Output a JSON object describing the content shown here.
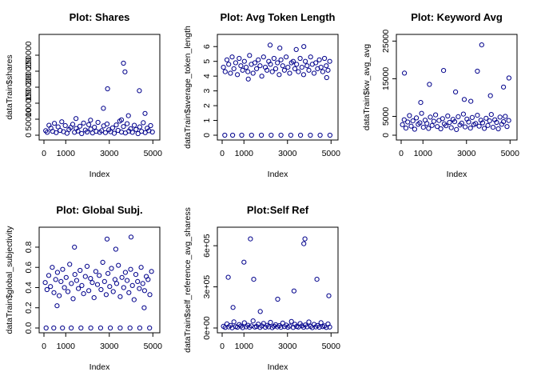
{
  "chart_data": [
    {
      "type": "scatter",
      "title": "Plot: Shares",
      "xlabel": "Index",
      "ylabel": "dataTrain$shares",
      "xlim": [
        0,
        5100
      ],
      "ylim": [
        0,
        300000
      ],
      "x_ticks": [
        0,
        1000,
        3000,
        5000
      ],
      "x_tick_labels": [
        "0",
        "1000",
        "3000",
        "5000"
      ],
      "y_ticks": [
        0,
        50000,
        100000,
        150000,
        200000,
        250000
      ],
      "y_tick_labels": [
        "0",
        "50000",
        "100000",
        "150000",
        "200000",
        "250000"
      ],
      "point_color": "#00008B",
      "series": [
        {
          "x": [
            80,
            150,
            230,
            320,
            400,
            480,
            560,
            650,
            740,
            820,
            900,
            980,
            1060,
            1150,
            1230,
            1320,
            1400,
            1480,
            1560,
            1650,
            1730,
            1820,
            1900,
            1980,
            2060,
            2150,
            2230,
            2320,
            2400,
            2480,
            2560,
            2650,
            2740,
            2820,
            2900,
            2980,
            3060,
            3150,
            3230,
            3320,
            3400,
            3480,
            3560,
            3650,
            3740,
            3820,
            3900,
            3980,
            4060,
            4150,
            4230,
            4320,
            4400,
            4480,
            4560,
            4650,
            4740,
            4820,
            4900,
            4980,
            2730,
            2920,
            3720,
            3650,
            4380,
            3880,
            3560,
            4640,
            2140,
            1470
          ],
          "y": [
            14000,
            9000,
            31000,
            22000,
            12000,
            37000,
            8000,
            26000,
            15000,
            42000,
            11000,
            30000,
            6000,
            18000,
            24000,
            34000,
            9000,
            21000,
            13000,
            28000,
            5000,
            38000,
            16000,
            10000,
            33000,
            19000,
            7000,
            25000,
            12000,
            40000,
            9000,
            14000,
            29000,
            8000,
            35000,
            17000,
            11000,
            23000,
            6000,
            32000,
            15000,
            44000,
            10000,
            27000,
            7000,
            36000,
            13000,
            20000,
            9000,
            31000,
            18000,
            5000,
            26000,
            12000,
            39000,
            8000,
            22000,
            14000,
            30000,
            10000,
            84000,
            145000,
            198000,
            225000,
            139000,
            61000,
            48000,
            68000,
            47000,
            52000
          ]
        }
      ]
    },
    {
      "type": "scatter",
      "title": "Plot: Avg Token Length",
      "xlabel": "Index",
      "ylabel": "dataTrain$average_token_length",
      "xlim": [
        0,
        5100
      ],
      "ylim": [
        0,
        6.5
      ],
      "x_ticks": [
        0,
        1000,
        3000,
        5000
      ],
      "x_tick_labels": [
        "0",
        "1000",
        "3000",
        "5000"
      ],
      "y_ticks": [
        0,
        1,
        2,
        3,
        4,
        5,
        6
      ],
      "y_tick_labels": [
        "0",
        "1",
        "2",
        "3",
        "4",
        "5",
        "6"
      ],
      "point_color": "#00008B",
      "series": [
        {
          "x": [
            60,
            140,
            220,
            300,
            380,
            460,
            540,
            620,
            700,
            780,
            860,
            940,
            1020,
            1100,
            1180,
            1260,
            1340,
            1420,
            1500,
            1580,
            1660,
            1740,
            1820,
            1900,
            1980,
            2060,
            2140,
            2220,
            2300,
            2380,
            2460,
            2540,
            2620,
            2700,
            2780,
            2860,
            2940,
            3020,
            3100,
            3180,
            3260,
            3340,
            3420,
            3500,
            3580,
            3660,
            3740,
            3820,
            3900,
            3980,
            4060,
            4140,
            4220,
            4300,
            4380,
            4460,
            4540,
            4620,
            4700,
            4780,
            4860,
            4940,
            120,
            480,
            900,
            1350,
            1800,
            2250,
            2700,
            3150,
            3600,
            4050,
            4500,
            4950,
            2200,
            2650,
            3400,
            1200,
            4800,
            3750
          ],
          "y": [
            4.6,
            4.3,
            5.1,
            4.8,
            4.2,
            5.3,
            4.5,
            4.9,
            4.1,
            5.2,
            4.7,
            4.4,
            5.0,
            4.6,
            4.3,
            5.4,
            4.8,
            4.2,
            4.9,
            4.5,
            5.1,
            4.7,
            4.0,
            5.3,
            4.6,
            4.4,
            5.0,
            4.8,
            4.3,
            5.2,
            4.5,
            4.9,
            4.1,
            5.1,
            4.7,
            4.4,
            5.3,
            4.6,
            4.2,
            4.9,
            5.0,
            4.5,
            4.8,
            4.3,
            5.2,
            4.6,
            4.1,
            5.0,
            4.7,
            4.4,
            5.3,
            4.8,
            4.2,
            4.9,
            4.5,
            5.1,
            4.6,
            4.3,
            5.2,
            4.7,
            4.4,
            5.0,
            0,
            0,
            0,
            0,
            0,
            0,
            0,
            0,
            0,
            0,
            0,
            0,
            6.1,
            5.9,
            5.8,
            3.8,
            3.9,
            6.0
          ]
        }
      ]
    },
    {
      "type": "scatter",
      "title": "Plot: Keyword Avg",
      "xlabel": "Index",
      "ylabel": "dataTrain$kw_avg_avg",
      "xlim": [
        0,
        5100
      ],
      "ylim": [
        0,
        25500
      ],
      "x_ticks": [
        0,
        1000,
        3000,
        5000
      ],
      "x_tick_labels": [
        "0",
        "1000",
        "3000",
        "5000"
      ],
      "y_ticks": [
        0,
        5000,
        15000,
        25000
      ],
      "y_tick_labels": [
        "0",
        "5000",
        "15000",
        "25000"
      ],
      "point_color": "#00008B",
      "series": [
        {
          "x": [
            60,
            140,
            220,
            300,
            380,
            460,
            540,
            620,
            700,
            780,
            860,
            940,
            1020,
            1100,
            1180,
            1260,
            1340,
            1420,
            1500,
            1580,
            1660,
            1740,
            1820,
            1900,
            1980,
            2060,
            2140,
            2220,
            2300,
            2380,
            2460,
            2540,
            2620,
            2700,
            2780,
            2860,
            2940,
            3020,
            3100,
            3180,
            3260,
            3340,
            3420,
            3500,
            3580,
            3660,
            3740,
            3820,
            3900,
            3980,
            4060,
            4140,
            4220,
            4300,
            4380,
            4460,
            4540,
            4620,
            4700,
            4780,
            4860,
            4940,
            150,
            1950,
            3700,
            4950,
            1300,
            3500,
            4100,
            2900,
            900,
            2500,
            4700,
            3200
          ],
          "y": [
            2800,
            4100,
            1900,
            3500,
            5200,
            2400,
            3800,
            1600,
            4600,
            2900,
            3300,
            5800,
            2100,
            4000,
            3100,
            1800,
            4800,
            2600,
            3700,
            5400,
            2300,
            3900,
            1700,
            4400,
            3000,
            2500,
            5100,
            3400,
            2000,
            4200,
            3600,
            1500,
            4900,
            2700,
            3200,
            5600,
            2200,
            4300,
            3500,
            1900,
            4700,
            2800,
            3100,
            5300,
            2400,
            4000,
            3300,
            1800,
            4500,
            2600,
            3800,
            5500,
            2100,
            4100,
            3400,
            1700,
            4800,
            2900,
            3600,
            5000,
            2300,
            3900,
            16500,
            17200,
            24000,
            15200,
            13500,
            17000,
            10500,
            9500,
            8700,
            11500,
            12800,
            9000
          ]
        }
      ]
    },
    {
      "type": "scatter",
      "title": "Plot: Global Subj.",
      "xlabel": "Index",
      "ylabel": "dataTrain$global_subjectivity",
      "xlim": [
        0,
        5100
      ],
      "ylim": [
        0,
        0.95
      ],
      "x_ticks": [
        0,
        1000,
        3000,
        5000
      ],
      "x_tick_labels": [
        "0",
        "1000",
        "3000",
        "5000"
      ],
      "y_ticks": [
        0,
        0.2,
        0.4,
        0.6,
        0.8
      ],
      "y_tick_labels": [
        "0.0",
        "0.2",
        "0.4",
        "0.6",
        "0.8"
      ],
      "point_color": "#00008B",
      "series": [
        {
          "x": [
            60,
            140,
            220,
            300,
            380,
            460,
            540,
            620,
            700,
            780,
            860,
            940,
            1020,
            1100,
            1180,
            1260,
            1340,
            1420,
            1500,
            1580,
            1660,
            1740,
            1820,
            1900,
            1980,
            2060,
            2140,
            2220,
            2300,
            2380,
            2460,
            2540,
            2620,
            2700,
            2780,
            2860,
            2940,
            3020,
            3100,
            3180,
            3260,
            3340,
            3420,
            3500,
            3580,
            3660,
            3740,
            3820,
            3900,
            3980,
            4060,
            4140,
            4220,
            4300,
            4380,
            4460,
            4540,
            4620,
            4700,
            4780,
            4860,
            4940,
            100,
            450,
            850,
            1250,
            1700,
            2150,
            2600,
            3050,
            3500,
            3950,
            4400,
            4850,
            2900,
            4000,
            1400,
            3300,
            600,
            4600
          ],
          "y": [
            0.45,
            0.38,
            0.52,
            0.41,
            0.6,
            0.35,
            0.48,
            0.55,
            0.32,
            0.46,
            0.58,
            0.4,
            0.5,
            0.36,
            0.63,
            0.44,
            0.29,
            0.53,
            0.47,
            0.39,
            0.57,
            0.42,
            0.34,
            0.51,
            0.61,
            0.37,
            0.49,
            0.45,
            0.3,
            0.56,
            0.43,
            0.52,
            0.38,
            0.65,
            0.46,
            0.33,
            0.54,
            0.41,
            0.59,
            0.36,
            0.48,
            0.44,
            0.62,
            0.31,
            0.5,
            0.4,
            0.55,
            0.47,
            0.35,
            0.58,
            0.42,
            0.28,
            0.53,
            0.46,
            0.39,
            0.6,
            0.44,
            0.37,
            0.51,
            0.48,
            0.33,
            0.56,
            0.0,
            0.0,
            0.0,
            0.0,
            0.0,
            0.0,
            0.0,
            0.0,
            0.0,
            0.0,
            0.0,
            0.0,
            0.88,
            0.9,
            0.8,
            0.78,
            0.22,
            0.2
          ]
        }
      ]
    },
    {
      "type": "scatter",
      "title": "Plot:Self Ref",
      "xlabel": "Index",
      "ylabel": "dataTrain$self_reference_avg_sharess",
      "xlim": [
        0,
        5100
      ],
      "ylim": [
        0,
        700000
      ],
      "x_ticks": [
        0,
        1000,
        3000,
        5000
      ],
      "x_tick_labels": [
        "0",
        "1000",
        "3000",
        "5000"
      ],
      "y_ticks": [
        0,
        300000,
        600000
      ],
      "y_tick_labels": [
        "0e+00",
        "3e+05",
        "6e+05"
      ],
      "point_color": "#00008B",
      "series": [
        {
          "x": [
            60,
            140,
            220,
            300,
            380,
            460,
            540,
            620,
            700,
            780,
            860,
            940,
            1020,
            1100,
            1180,
            1260,
            1340,
            1420,
            1500,
            1580,
            1660,
            1740,
            1820,
            1900,
            1980,
            2060,
            2140,
            2220,
            2300,
            2380,
            2460,
            2540,
            2620,
            2700,
            2780,
            2860,
            2940,
            3020,
            3100,
            3180,
            3260,
            3340,
            3420,
            3500,
            3580,
            3660,
            3740,
            3820,
            3900,
            3980,
            4060,
            4140,
            4220,
            4300,
            4380,
            4460,
            4540,
            4620,
            4700,
            4780,
            4860,
            4940,
            1300,
            3800,
            3750,
            1000,
            280,
            1450,
            4350,
            2550,
            3300,
            500,
            1750,
            4900
          ],
          "y": [
            12000,
            4000,
            30000,
            8000,
            18000,
            2000,
            45000,
            10000,
            6000,
            25000,
            14000,
            3000,
            38000,
            9000,
            20000,
            5000,
            16000,
            52000,
            7000,
            11000,
            28000,
            4000,
            15000,
            33000,
            6000,
            19000,
            9000,
            41000,
            3000,
            13000,
            24000,
            8000,
            17000,
            5000,
            36000,
            10000,
            21000,
            6000,
            14000,
            48000,
            4000,
            27000,
            11000,
            7000,
            32000,
            16000,
            5000,
            22000,
            9000,
            44000,
            12000,
            3000,
            26000,
            8000,
            18000,
            6000,
            39000,
            10000,
            15000,
            4000,
            29000,
            7000,
            650000,
            650000,
            615000,
            480000,
            370000,
            355000,
            355000,
            210000,
            270000,
            150000,
            120000,
            235000
          ]
        }
      ]
    }
  ]
}
